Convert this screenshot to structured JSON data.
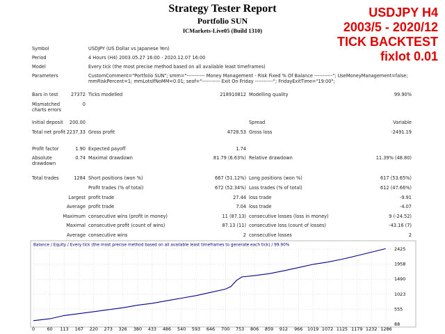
{
  "header": {
    "title": "Strategy Tester Report",
    "subtitle": "Portfolio SUN",
    "server": "ICMarkets-Live05 (Build 1310)"
  },
  "overlay": [
    "USDJPY H4",
    "2003/5 - 2020/12",
    "TICK BACKTEST",
    "fixlot 0.01"
  ],
  "table": {
    "rows": [
      [
        "Symbol",
        null,
        "USDJPY (US Dollar vs Japanese Yen)",
        null,
        null,
        null
      ],
      [
        "Period",
        null,
        "4 Hours (H4) 2003.05.27 16:00 - 2020.12.07 16:00",
        null,
        null,
        null
      ],
      [
        "Model",
        null,
        "Every tick (the most precise method based on all available least timeframes)",
        null,
        null,
        null
      ],
      [
        "Parameters",
        null,
        "CustomComment=\"Portfolio SUN\"; smm=\"----------- Money Management - Risk Fixed % Of Balance -----------\"; UseMoneyManagement=false; mmRiskPercent=1; mmLotsIfNoMM=0.01; seof=\"----------- Exit On Friday -----------\"; FridayExitTime=\"19:00\";",
        null,
        null,
        null
      ],
      [
        "Bars in test",
        "27372",
        "Ticks modelled",
        "218910812",
        "Modelling quality",
        "99.90%"
      ],
      [
        "Mismatched charts errors",
        "0",
        null,
        null,
        null,
        null
      ],
      [
        "Initial deposit",
        "200.00",
        null,
        null,
        "Spread",
        "Variable"
      ],
      [
        "Total net profit",
        "2237.33",
        "Gross profit",
        "4728.53",
        "Gross loss",
        "-2491.19"
      ],
      [
        "Profit factor",
        "1.90",
        "Expected payoff",
        "1.74",
        null,
        null
      ],
      [
        "Absolute drawdown",
        "0.74",
        "Maximal drawdown",
        "81.79 (6.63%)",
        "Relative drawdown",
        "11.39% (48.80)"
      ],
      [
        "Total trades",
        "1284",
        "Short positions (won %)",
        "667 (51.12%)",
        "Long positions (won %)",
        "617 (53.65%)"
      ],
      [
        null,
        null,
        "Profit trades (% of total)",
        "672 (52.34%)",
        "Loss trades (% of total)",
        "612 (47.66%)"
      ],
      [
        null,
        "Largest",
        "profit trade",
        "27.44",
        "loss trade",
        "-9.91"
      ],
      [
        null,
        "Average",
        "profit trade",
        "7.04",
        "loss trade",
        "-4.07"
      ],
      [
        null,
        "Maximum",
        "consecutive wins (profit in money)",
        "11 (87.13)",
        "consecutive losses (loss in money)",
        "9 (-24.52)"
      ],
      [
        null,
        "Maximal",
        "consecutive profit (count of wins)",
        "87.13 (11)",
        "consecutive loss (count of losses)",
        "-43.16 (7)"
      ],
      [
        null,
        "Average",
        "consecutive wins",
        "2",
        "consecutive losses",
        "2"
      ]
    ]
  },
  "chart_data": {
    "type": "line",
    "legend_text": "Balance / Equity / Every tick (the most precise method based on all available least timeframes to generate each tick) / 99.90%",
    "x": [
      0,
      60,
      113,
      167,
      220,
      273,
      326,
      380,
      433,
      486,
      540,
      593,
      646,
      700,
      720,
      740,
      760,
      806,
      859,
      912,
      966,
      1019,
      1072,
      1125,
      1179,
      1232,
      1284
    ],
    "series": [
      {
        "name": "Balance",
        "color": "#00008b",
        "values": [
          200,
          260,
          360,
          420,
          480,
          540,
          600,
          680,
          740,
          820,
          900,
          980,
          1080,
          1180,
          1260,
          1450,
          1560,
          1600,
          1660,
          1750,
          1850,
          1950,
          2020,
          2110,
          2220,
          2330,
          2437
        ]
      }
    ],
    "xlim": [
      0,
      1305
    ],
    "ylim": [
      45,
      2641
    ],
    "xticks": [
      0,
      60,
      113,
      167,
      220,
      273,
      326,
      380,
      433,
      486,
      540,
      593,
      646,
      700,
      753,
      806,
      859,
      912,
      966,
      1019,
      1072,
      1125,
      1179,
      1232,
      1286
    ],
    "yticks": [
      88,
      555,
      1023,
      1490,
      1958,
      2425
    ],
    "grid": true
  }
}
